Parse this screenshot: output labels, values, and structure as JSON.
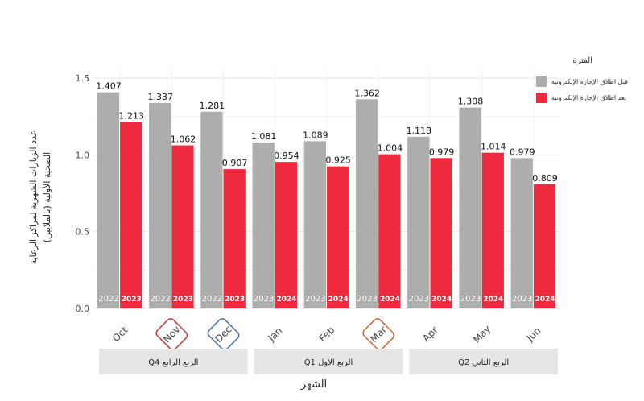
{
  "legend": {
    "title": "الفترة",
    "items": [
      {
        "label": "قبل اطلاق الإجازة الإلكترونية",
        "color": "#adadab"
      },
      {
        "label": "بعد اطلاق الإجازة الإلكترونية",
        "color": "#ee2a3f"
      }
    ]
  },
  "axes": {
    "ylabel_line1": "عدد الزيارات الشهرية لمراكز الرعاية",
    "ylabel_line2": "الصحية الأولية (بالملايين)",
    "xlabel": "الشهر"
  },
  "chart_data": {
    "type": "bar",
    "ylim": [
      0,
      1.5
    ],
    "yticks": [
      "0.0",
      "0.5",
      "1.0",
      "1.5"
    ],
    "grid": true,
    "legend_position": "right",
    "categories": [
      "Oct",
      "Nov",
      "Dec",
      "Jan",
      "Feb",
      "Mar",
      "Apr",
      "May",
      "Jun"
    ],
    "highlighted": [
      {
        "category": "Nov",
        "color": "#c23b3b"
      },
      {
        "category": "Dec",
        "color": "#4c6fae"
      },
      {
        "category": "Mar",
        "color": "#c86a33"
      }
    ],
    "series": [
      {
        "name": "قبل اطلاق الإجازة الإلكترونية",
        "color": "#adadab",
        "values": [
          1.407,
          1.337,
          1.281,
          1.081,
          1.089,
          1.362,
          1.118,
          1.308,
          0.979
        ],
        "value_labels": [
          "1.407",
          "1.337",
          "1.281",
          "1.081",
          "1.089",
          "1.362",
          "1.118",
          "1.308",
          "0.979"
        ],
        "years": [
          "2022",
          "2022",
          "2022",
          "2023",
          "2023",
          "2023",
          "2023",
          "2023",
          "2023"
        ]
      },
      {
        "name": "بعد اطلاق الإجازة الإلكترونية",
        "color": "#ee2a3f",
        "values": [
          1.213,
          1.062,
          0.907,
          0.954,
          0.925,
          1.004,
          0.979,
          1.014,
          0.809
        ],
        "value_labels": [
          "1.213",
          "1.062",
          "0.907",
          "0.954",
          "0.925",
          "1.004",
          "0.979",
          "1.014",
          "0.809"
        ],
        "years": [
          "2023",
          "2023",
          "2023",
          "2024",
          "2024",
          "2024",
          "2024",
          "2024",
          "2024"
        ]
      }
    ],
    "facets": [
      {
        "label": "الربع الرابع Q4",
        "categories": [
          "Oct",
          "Nov",
          "Dec"
        ]
      },
      {
        "label": "الربع الاول Q1",
        "categories": [
          "Jan",
          "Feb",
          "Mar"
        ]
      },
      {
        "label": "الربع الثاني Q2",
        "categories": [
          "Apr",
          "May",
          "Jun"
        ]
      }
    ]
  }
}
